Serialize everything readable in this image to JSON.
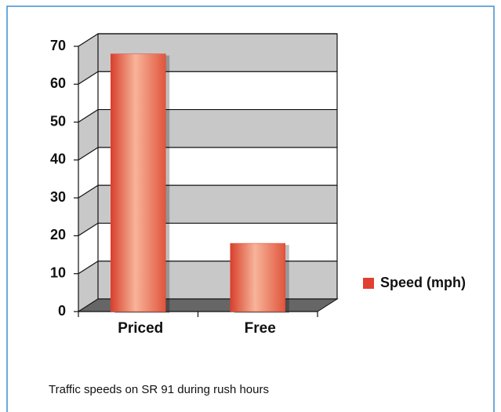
{
  "chart_data": {
    "type": "bar",
    "caption": "Traffic speeds on SR 91 during rush hours",
    "categories": [
      "Priced",
      "Free"
    ],
    "series": [
      {
        "name": "Speed (mph)",
        "color": "#e04030",
        "values": [
          68,
          18
        ]
      }
    ],
    "ylim": [
      0,
      70
    ],
    "yticks": [
      0,
      10,
      20,
      30,
      40,
      50,
      60,
      70
    ],
    "grid": true,
    "legend": "right"
  }
}
